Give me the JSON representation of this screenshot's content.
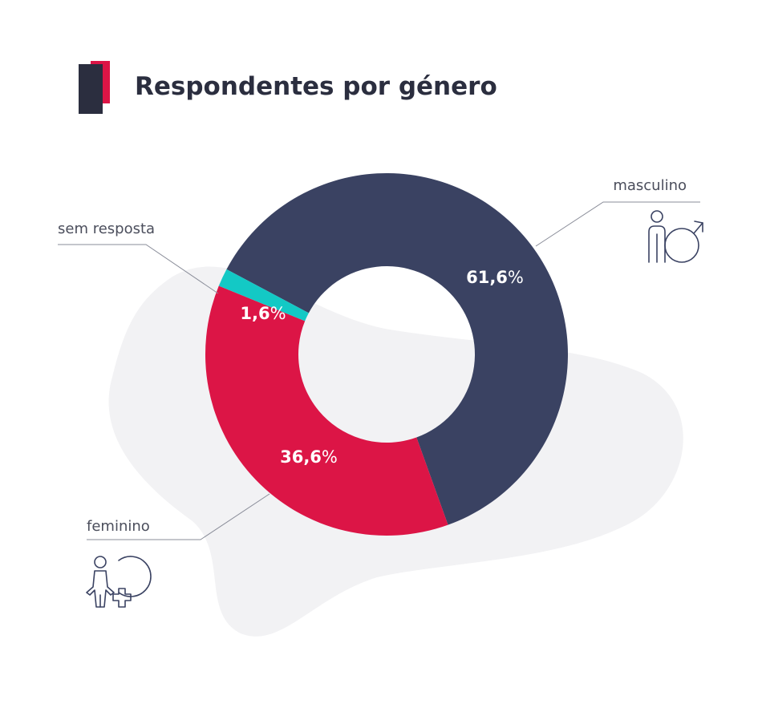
{
  "chart_data": {
    "type": "pie",
    "title": "Respondentes por género",
    "categories": [
      "masculino",
      "feminino",
      "sem resposta"
    ],
    "values": [
      61.6,
      36.6,
      1.6
    ],
    "data_labels": [
      "61,6",
      "36,6",
      "1,6"
    ],
    "unit_suffix": "%",
    "colors": [
      "#3a4262",
      "#dc1546",
      "#13c9c5"
    ],
    "icons": [
      "male-person-icon",
      "female-person-icon",
      ""
    ]
  },
  "colors": {
    "title_text": "#2b2e3f",
    "title_accent": "#dc1546",
    "title_block": "#2b2e3f",
    "label_text": "#4b4e5c",
    "leader_line": "#8a8d99",
    "blob": "#f2f2f4",
    "icon_stroke": "#3a4262"
  }
}
